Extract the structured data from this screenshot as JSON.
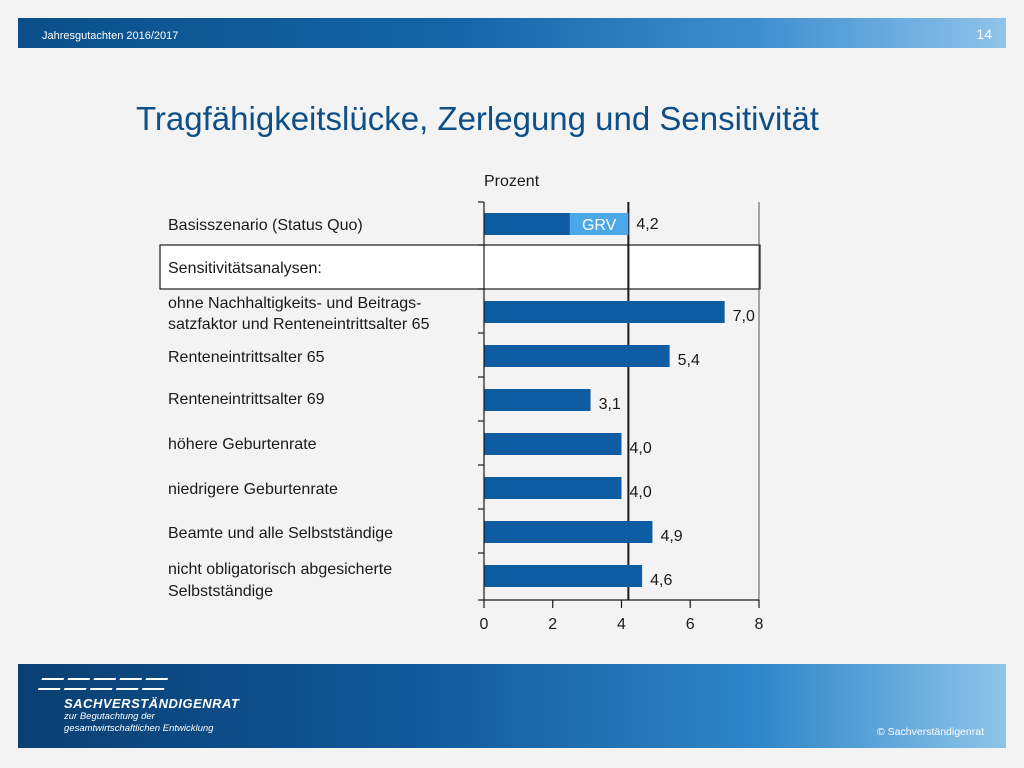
{
  "header": {
    "subtitle": "Jahresgutachten  2016/2017",
    "page_number": "14"
  },
  "title": "Tragfähigkeitslücke, Zerlegung und Sensitivität",
  "footer": {
    "org_name": "SACHVERSTÄNDIGENRAT",
    "org_line1": "zur Begutachtung der",
    "org_line2": "gesamtwirtschaftlichen Entwicklung",
    "copyright": "© Sachverständigenrat"
  },
  "chart_data": {
    "type": "bar",
    "orientation": "horizontal",
    "unit_label": "Prozent",
    "section_label": "Sensitivitätsanalysen:",
    "bar_inner_label": "GRV",
    "xlim": [
      0,
      8
    ],
    "xticks": [
      "0",
      "2",
      "4",
      "6",
      "8"
    ],
    "colors": {
      "bar": "#0e5da3",
      "grv": "#4aa8e8"
    },
    "categories": [
      [
        "Basisszenario (Status Quo)"
      ],
      [
        "ohne Nachhaltigkeits- und Beitrags-",
        "satzfaktor und Renteneintrittsalter 65"
      ],
      [
        "Renteneintrittsalter 65"
      ],
      [
        "Renteneintrittsalter 69"
      ],
      [
        "höhere Geburtenrate"
      ],
      [
        "niedrigere Geburtenrate"
      ],
      [
        "Beamte und alle Selbstständige"
      ],
      [
        "nicht obligatorisch abgesicherte",
        "Selbstständige"
      ]
    ],
    "values": [
      4.2,
      7.0,
      5.4,
      3.1,
      4.0,
      4.0,
      4.9,
      4.6
    ],
    "value_labels": [
      "4,2",
      "7,0",
      "5,4",
      "3,1",
      "4,0",
      "4,0",
      "4,9",
      "4,6"
    ],
    "base_split": {
      "grv_start": 2.5,
      "grv_end": 4.2
    },
    "reference_line": 4.2
  }
}
